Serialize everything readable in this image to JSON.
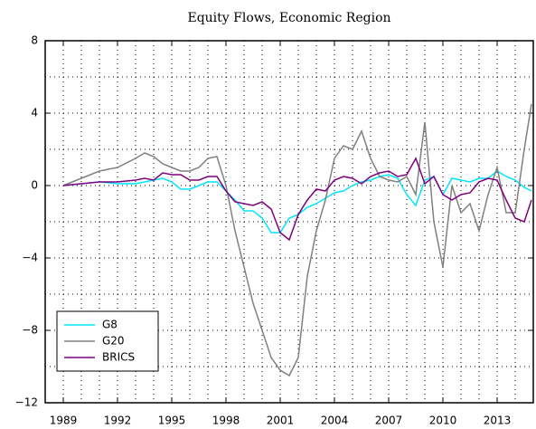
{
  "chart_data": {
    "type": "line",
    "title": "Equity Flows, Economic Region",
    "x": [
      1989,
      1990,
      1991,
      1992,
      1993,
      1993.5,
      1994,
      1994.5,
      1995,
      1995.5,
      1996,
      1996.5,
      1997,
      1997.5,
      1998,
      1998.5,
      1999,
      1999.5,
      2000,
      2000.5,
      2001,
      2001.5,
      2002,
      2002.5,
      2003,
      2003.5,
      2004,
      2004.5,
      2005,
      2005.5,
      2006,
      2006.5,
      2007,
      2007.5,
      2008,
      2008.5,
      2009,
      2009.5,
      2010,
      2010.5,
      2011,
      2011.5,
      2012,
      2012.5,
      2013,
      2013.5,
      2014,
      2014.5,
      2014.9
    ],
    "series": [
      {
        "name": "G8",
        "color": "#00e5ff",
        "values": [
          0,
          0.1,
          0.2,
          0.1,
          0.1,
          0.2,
          0.3,
          0.4,
          0.2,
          -0.2,
          -0.2,
          0,
          0.2,
          0.2,
          -0.3,
          -0.8,
          -1.4,
          -1.4,
          -1.8,
          -2.6,
          -2.6,
          -1.8,
          -1.6,
          -1.2,
          -1.0,
          -0.7,
          -0.4,
          -0.3,
          0,
          0.2,
          0.3,
          0.5,
          0.6,
          0.4,
          -0.5,
          -1.1,
          0.3,
          0.5,
          -0.5,
          0.4,
          0.3,
          0.2,
          0.4,
          0.4,
          0.8,
          0.5,
          0.3,
          -0.1,
          -0.3
        ]
      },
      {
        "name": "G20",
        "color": "#808080",
        "values": [
          0,
          0.4,
          0.8,
          1.0,
          1.5,
          1.8,
          1.6,
          1.2,
          1.0,
          0.8,
          0.8,
          1.0,
          1.5,
          1.6,
          0,
          -2.5,
          -4.5,
          -6.5,
          -8,
          -9.5,
          -10.2,
          -10.5,
          -9.5,
          -5,
          -2.5,
          -0.8,
          1.5,
          2.2,
          2,
          3.0,
          1.5,
          0.5,
          0.3,
          0.2,
          0.5,
          -0.5,
          3.5,
          -2,
          -4.5,
          0,
          -1.5,
          -1.0,
          -2.5,
          -0.5,
          1.0,
          -1.5,
          -1.5,
          2.0,
          4.5
        ]
      },
      {
        "name": "BRICS",
        "color": "#800080",
        "values": [
          0,
          0.1,
          0.2,
          0.2,
          0.3,
          0.4,
          0.3,
          0.7,
          0.6,
          0.6,
          0.3,
          0.3,
          0.5,
          0.5,
          -0.3,
          -0.9,
          -1.0,
          -1.1,
          -0.9,
          -1.3,
          -2.6,
          -3.0,
          -1.6,
          -0.8,
          -0.2,
          -0.3,
          0.3,
          0.5,
          0.4,
          0.1,
          0.5,
          0.7,
          0.8,
          0.5,
          0.6,
          1.5,
          0.1,
          0.5,
          -0.5,
          -0.8,
          -0.5,
          -0.4,
          0.2,
          0.4,
          0.3,
          -0.8,
          -1.8,
          -2.0,
          -0.8
        ]
      }
    ],
    "xlim": [
      1988,
      2015
    ],
    "xticks": [
      1989,
      1992,
      1995,
      1998,
      2001,
      2004,
      2007,
      2010,
      2013
    ],
    "minor_xticks": [
      1990,
      1991,
      1993,
      1994,
      1996,
      1997,
      1999,
      2000,
      2002,
      2003,
      2005,
      2006,
      2008,
      2009,
      2011,
      2012,
      2014
    ],
    "ylim": [
      -12,
      8
    ],
    "yticks": [
      {
        "value": -12,
        "label": "−12"
      },
      {
        "value": -8,
        "label": "−8"
      },
      {
        "value": -4,
        "label": "−4"
      },
      0,
      4,
      8
    ],
    "minor_yticks": [
      -10,
      -6,
      -2,
      2,
      6
    ],
    "grid": true,
    "legend": "lower left"
  }
}
